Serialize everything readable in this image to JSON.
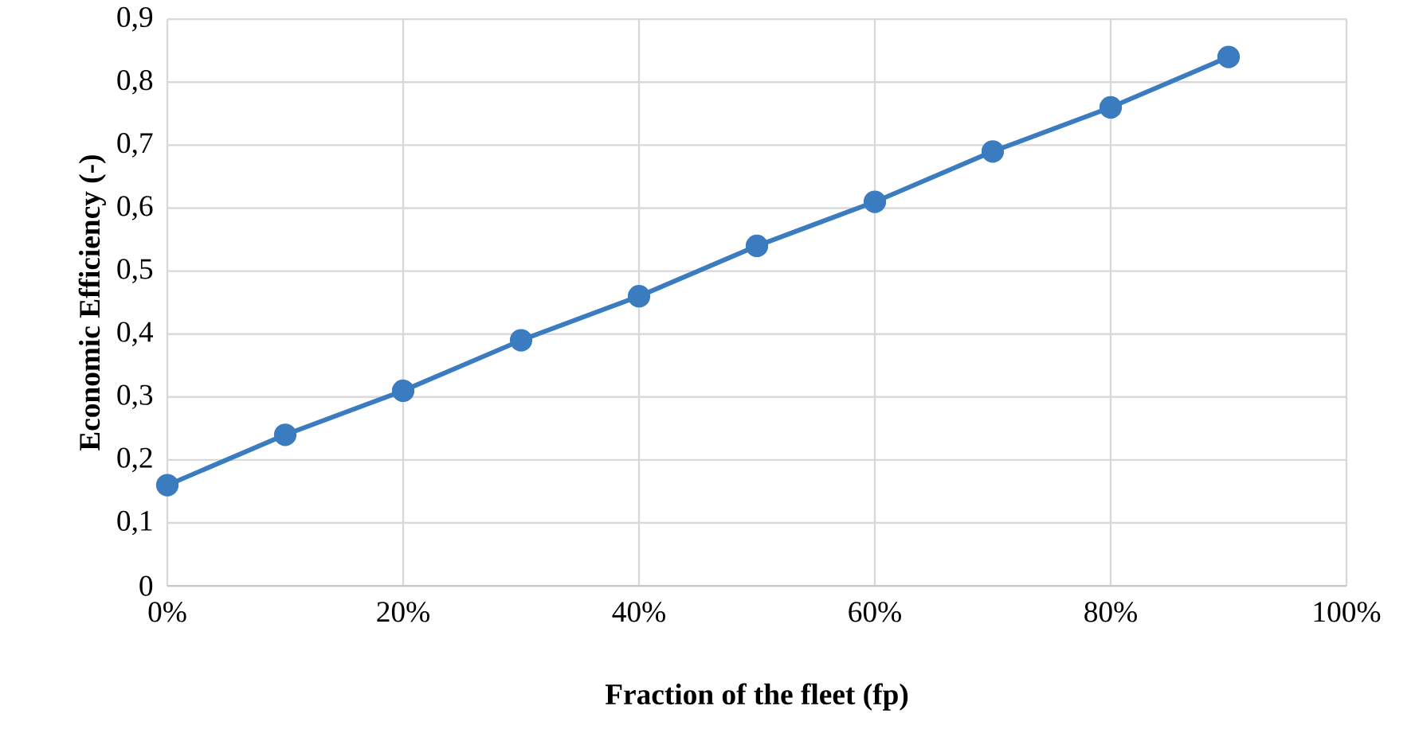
{
  "chart_data": {
    "type": "line",
    "xlabel": "Fraction of the fleet (fp)",
    "ylabel": "Economic Efficiency (-)",
    "x": [
      0,
      10,
      20,
      30,
      40,
      50,
      60,
      70,
      80,
      90
    ],
    "series": [
      {
        "color": "#3a7cbf",
        "values": [
          0.16,
          0.24,
          0.31,
          0.39,
          0.46,
          0.54,
          0.61,
          0.69,
          0.76,
          0.84
        ]
      }
    ],
    "xlim": [
      0,
      100
    ],
    "xticks": [
      {
        "value": 0,
        "label": "0%"
      },
      {
        "value": 20,
        "label": "20%"
      },
      {
        "value": 40,
        "label": "40%"
      },
      {
        "value": 60,
        "label": "60%"
      },
      {
        "value": 80,
        "label": "80%"
      },
      {
        "value": 100,
        "label": "100%"
      }
    ],
    "ylim": [
      0,
      0.9
    ],
    "yticks": [
      {
        "value": 0,
        "label": "0"
      },
      {
        "value": 0.1,
        "label": "0,1"
      },
      {
        "value": 0.2,
        "label": "0,2"
      },
      {
        "value": 0.3,
        "label": "0,3"
      },
      {
        "value": 0.4,
        "label": "0,4"
      },
      {
        "value": 0.5,
        "label": "0,5"
      },
      {
        "value": 0.6,
        "label": "0,6"
      },
      {
        "value": 0.7,
        "label": "0,7"
      },
      {
        "value": 0.8,
        "label": "0,8"
      },
      {
        "value": 0.9,
        "label": "0,9"
      }
    ],
    "grid": true,
    "legend": false,
    "marker": "circle",
    "line_style": "solid"
  }
}
